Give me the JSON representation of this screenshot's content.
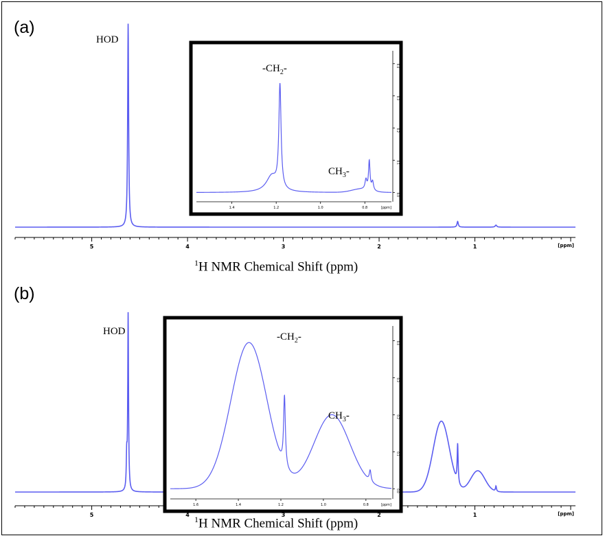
{
  "colors": {
    "spectrum": "#5a5cf0",
    "axis": "#000000",
    "frame": "#000000"
  },
  "chart_data": [
    {
      "panel": "(a)",
      "type": "line",
      "xlabel_prefix": "1",
      "xlabel": "H NMR Chemical Shift (ppm)",
      "x_unit_label": "[ppm]",
      "xlim": [
        5.8,
        -0.05
      ],
      "x_reversed": true,
      "xticks": [
        5,
        4,
        3,
        2,
        1
      ],
      "grid": false,
      "series": [
        {
          "peaks": [
            {
              "x": 4.62,
              "height": 1.0,
              "width": 0.006,
              "shape": "lorentz"
            },
            {
              "x": 1.18,
              "height": 0.028,
              "width": 0.008,
              "shape": "lorentz"
            },
            {
              "x": 0.78,
              "height": 0.01,
              "width": 0.01,
              "shape": "lorentz"
            }
          ]
        }
      ],
      "annotations": [
        {
          "x": 4.62,
          "text": "HOD"
        }
      ],
      "inset": {
        "xlim": [
          1.56,
          0.68
        ],
        "xticks": [
          1.4,
          1.2,
          1.0,
          0.8
        ],
        "xtick_labels": [
          "1.4",
          "1.2",
          "1.0",
          "0.8"
        ],
        "x_unit_label": "[ppm]",
        "yticks": [
          0,
          0.1,
          0.2,
          0.3,
          0.4
        ],
        "ytick_labels": [
          "0.0",
          "0.1",
          "0.2",
          "0.3",
          "0.4"
        ],
        "ylim": [
          -0.02,
          0.44
        ],
        "series": [
          {
            "peaks": [
              {
                "x": 1.183,
                "height": 0.32,
                "width": 0.006,
                "shape": "lorentz"
              },
              {
                "x": 1.22,
                "height": 0.05,
                "width": 0.03,
                "shape": "lorentz"
              },
              {
                "x": 0.78,
                "height": 0.09,
                "width": 0.004,
                "shape": "lorentz"
              },
              {
                "x": 0.795,
                "height": 0.03,
                "width": 0.005,
                "shape": "lorentz"
              },
              {
                "x": 0.765,
                "height": 0.028,
                "width": 0.005,
                "shape": "lorentz"
              },
              {
                "x": 0.82,
                "height": 0.01,
                "width": 0.04,
                "shape": "gauss"
              }
            ]
          }
        ],
        "labels": [
          {
            "key": "ch2",
            "pre": "-CH",
            "sub": "2",
            "post": "-"
          },
          {
            "key": "ch3",
            "pre": "CH",
            "sub": "3",
            "post": "-"
          }
        ]
      }
    },
    {
      "panel": "(b)",
      "type": "line",
      "xlabel_prefix": "1",
      "xlabel": "H NMR Chemical Shift (ppm)",
      "x_unit_label": "[ppm]",
      "xlim": [
        5.8,
        -0.05
      ],
      "x_reversed": true,
      "xticks": [
        5,
        4,
        3,
        2,
        1
      ],
      "grid": false,
      "series": [
        {
          "peaks": [
            {
              "x": 4.62,
              "height": 1.0,
              "width": 0.005,
              "shape": "lorentz"
            },
            {
              "x": 4.635,
              "height": 0.18,
              "width": 0.005,
              "shape": "lorentz"
            },
            {
              "x": 1.35,
              "height": 0.4,
              "width": 0.085,
              "shape": "gauss"
            },
            {
              "x": 1.18,
              "height": 0.22,
              "width": 0.006,
              "shape": "lorentz"
            },
            {
              "x": 0.97,
              "height": 0.12,
              "width": 0.075,
              "shape": "gauss"
            },
            {
              "x": 0.78,
              "height": 0.03,
              "width": 0.006,
              "shape": "lorentz"
            }
          ]
        }
      ],
      "annotations": [
        {
          "x": 4.62,
          "text": "HOD"
        }
      ],
      "inset": {
        "xlim": [
          1.72,
          0.68
        ],
        "xticks": [
          1.6,
          1.4,
          1.2,
          1.0,
          0.8
        ],
        "xtick_labels": [
          "1.6",
          "1.4",
          "1.2",
          "1.0",
          "0.8"
        ],
        "x_unit_label": "[ppm]",
        "yticks": [
          0,
          0.1,
          0.2,
          0.3,
          0.4
        ],
        "ytick_labels": [
          "0.0",
          "0.1",
          "0.2",
          "0.3",
          "0.4"
        ],
        "ylim": [
          -0.02,
          0.44
        ],
        "series": [
          {
            "peaks": [
              {
                "x": 1.35,
                "height": 0.395,
                "width": 0.085,
                "shape": "gauss"
              },
              {
                "x": 1.183,
                "height": 0.19,
                "width": 0.005,
                "shape": "lorentz"
              },
              {
                "x": 0.96,
                "height": 0.2,
                "width": 0.085,
                "shape": "gauss"
              },
              {
                "x": 0.78,
                "height": 0.03,
                "width": 0.005,
                "shape": "lorentz"
              }
            ]
          }
        ],
        "labels": [
          {
            "key": "ch2",
            "pre": "-CH",
            "sub": "2",
            "post": "-"
          },
          {
            "key": "ch3",
            "pre": "CH",
            "sub": "3",
            "post": "-"
          }
        ]
      }
    }
  ]
}
